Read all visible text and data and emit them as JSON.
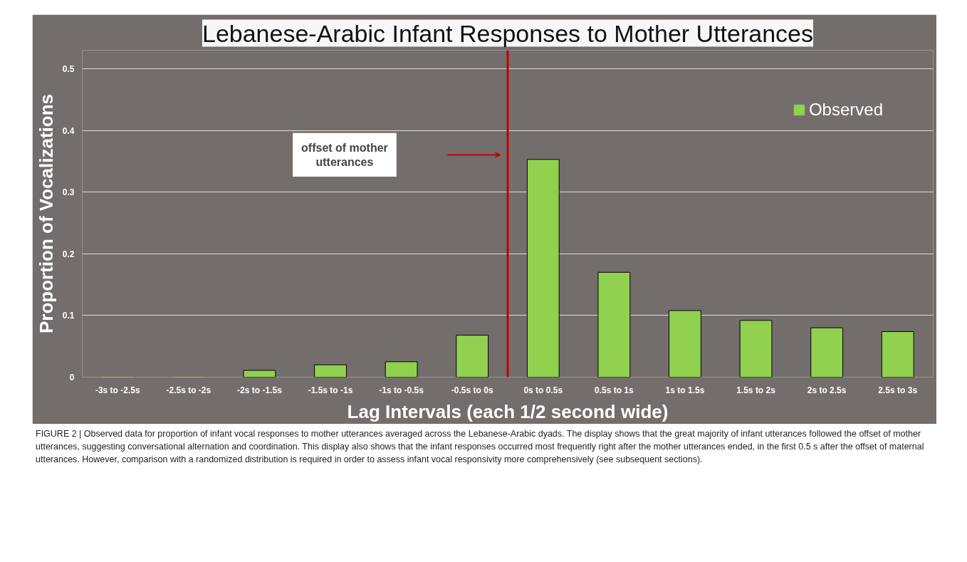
{
  "chart_data": {
    "type": "bar",
    "title": "Lebanese-Arabic Infant Responses to Mother Utterances",
    "xlabel": "Lag Intervals (each 1/2 second wide)",
    "ylabel": "Proportion of Vocalizations",
    "categories": [
      "-3s to -2.5s",
      "-2.5s to -2s",
      "-2s to -1.5s",
      "-1.5s to -1s",
      "-1s to -0.5s",
      "-0.5s to 0s",
      "0s to 0.5s",
      "0.5s to 1s",
      "1s to 1.5s",
      "1.5s to 2s",
      "2s to 2.5s",
      "2.5s to 3s"
    ],
    "series": [
      {
        "name": "Observed",
        "color": "#92d050",
        "values": [
          0,
          0,
          0.011,
          0.02,
          0.025,
          0.068,
          0.353,
          0.17,
          0.108,
          0.092,
          0.08,
          0.074
        ]
      }
    ],
    "ylim": [
      0,
      0.53
    ],
    "yticks": [
      {
        "value": 0,
        "label": "0"
      },
      0.1,
      0.2,
      0.3,
      0.4,
      0.5
    ],
    "grid": "y",
    "legend": "top right",
    "ref_lines": [
      {
        "axis": "x",
        "value": "0s to 0.5s",
        "color": "#c00000"
      }
    ],
    "annotations": [
      "offset of mother utterances",
      "FIGURE 2 | Observed data for proportion of infant vocal responses to mother utterances averaged across the Lebanese-Arabic dyads. The display shows that the great majority of infant utterances followed the offset of mother utterances, suggesting conversational alternation and coordination. This display also shows that the infant responses occurred most frequently right after the mother utterances ended, in the first 0.5 s after the offset of maternal utterances. However, comparison with a randomized distribution is required in order to assess infant vocal responsivity more comprehensively (see subsequent sections)."
    ]
  }
}
